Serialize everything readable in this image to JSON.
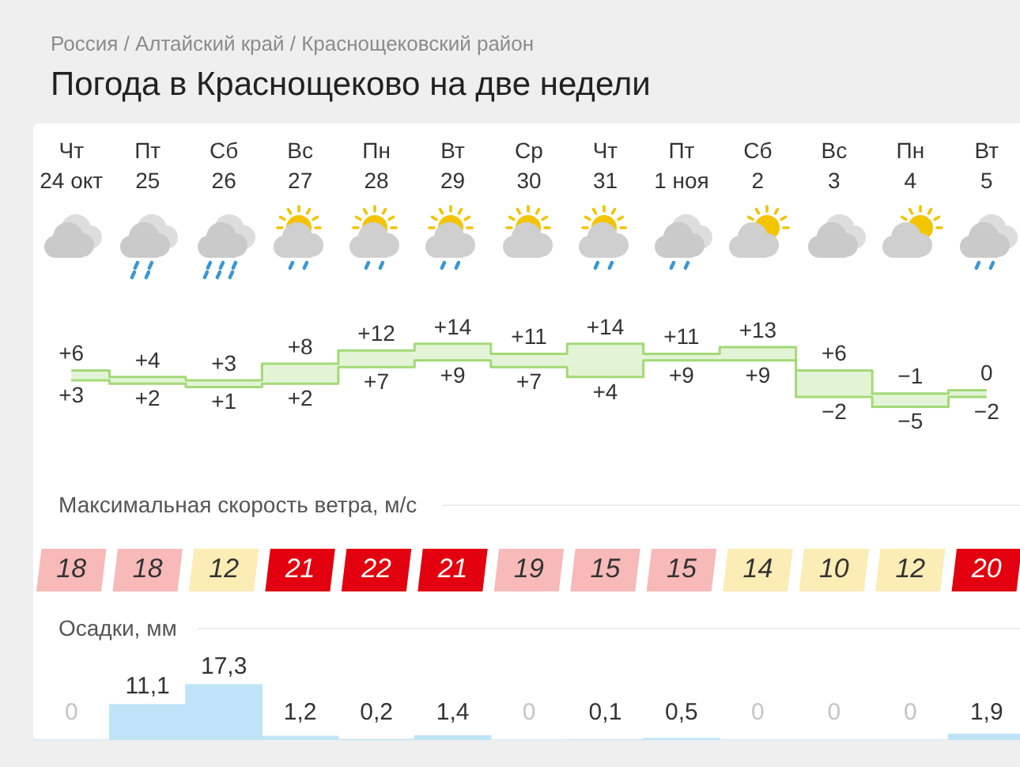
{
  "chart_data": [
    {
      "type": "step",
      "title": "Погода в Краснощеково на две недели",
      "subtitle": "Россия / Алтайский край / Краснощековский район",
      "tick_labels": "x",
      "categories": [
        "Чт\n24 окт",
        "Пт\n25",
        "Сб\n26",
        "Вс\n27",
        "Пн\n28",
        "Вт\n29",
        "Ср\n30",
        "Чт\n31",
        "Пт\n1 ноя",
        "Сб\n2",
        "Вс\n3",
        "Пн\n4",
        "Вт\n5"
      ],
      "series": [
        {
          "values": [
            6,
            4,
            3,
            8,
            12,
            14,
            11,
            14,
            11,
            13,
            6,
            -1,
            0
          ],
          "value_labels": [
            "+6",
            "+4",
            "+3",
            "+8",
            "+12",
            "+14",
            "+11",
            "+14",
            "+11",
            "+13",
            "+6",
            "−1",
            "0"
          ],
          "lower": [
            3,
            2,
            1,
            2,
            7,
            9,
            7,
            4,
            9,
            9,
            -2,
            -5,
            -2
          ],
          "upper": [
            6,
            4,
            3,
            8,
            12,
            14,
            11,
            14,
            11,
            13,
            6,
            -1,
            0
          ],
          "color": "#a3d977"
        },
        {
          "values": [
            3,
            2,
            1,
            2,
            7,
            9,
            7,
            4,
            9,
            9,
            -2,
            -5,
            -2
          ],
          "value_labels": [
            "+3",
            "+2",
            "+1",
            "+2",
            "+7",
            "+9",
            "+7",
            "+4",
            "+9",
            "+9",
            "−2",
            "−5",
            "−2"
          ],
          "color": "#a3d977"
        }
      ]
    },
    {
      "type": "heatmap",
      "title": "Максимальная скорость ветра, м/с",
      "data_labels": true,
      "categories": [
        null,
        null,
        null,
        null,
        null,
        null,
        null,
        null,
        null,
        null,
        null,
        null,
        null
      ],
      "y_categories": [
        null
      ],
      "cells": [
        [
          18,
          18,
          12,
          21,
          22,
          21,
          19,
          15,
          15,
          14,
          10,
          12,
          20
        ]
      ],
      "colors": [
        "#f8b9b9",
        "#f8b9b9",
        "#fcecb5",
        "#e3000f",
        "#e3000f",
        "#e3000f",
        "#f8b9b9",
        "#f8b9b9",
        "#f8b9b9",
        "#fcecb5",
        "#fcecb5",
        "#fcecb5",
        "#e3000f"
      ]
    },
    {
      "type": "bar",
      "title": "Осадки, мм",
      "tick_labels": "x",
      "categories": [
        null,
        null,
        null,
        null,
        null,
        null,
        null,
        null,
        null,
        null,
        null,
        null,
        null
      ],
      "values": [
        0,
        11.1,
        17.3,
        1.2,
        0.2,
        1.4,
        0,
        0.1,
        0.5,
        0,
        0,
        0,
        1.9
      ],
      "value_labels": [
        "0",
        "11,1",
        "17,3",
        "1,2",
        "0,2",
        "1,4",
        "0",
        "0,1",
        "0,5",
        "0",
        "0",
        "0",
        "1,9"
      ],
      "color": "#bfe4f8"
    }
  ]
}
